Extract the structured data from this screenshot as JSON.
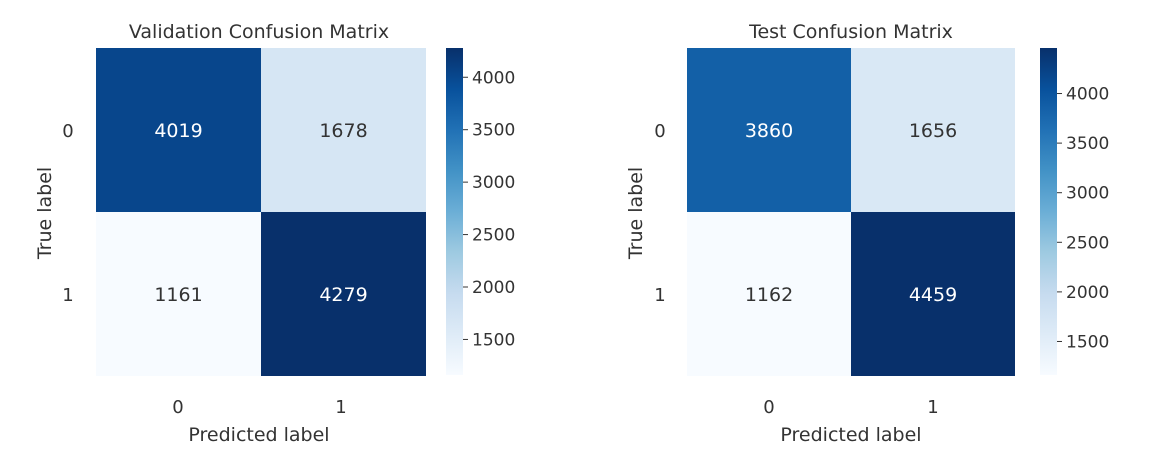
{
  "chart_data": [
    {
      "type": "heatmap",
      "title": "Validation Confusion Matrix",
      "xlabel": "Predicted label",
      "ylabel": "True label",
      "x_tick_labels": [
        "0",
        "1"
      ],
      "y_tick_labels": [
        "0",
        "1"
      ],
      "values": [
        [
          4019,
          1678
        ],
        [
          1161,
          4279
        ]
      ],
      "value_labels": [
        [
          "4019",
          "1678"
        ],
        [
          "1161",
          "4279"
        ]
      ],
      "colormap": "Blues",
      "color_range": [
        1161,
        4279
      ],
      "colorbar_ticks": [
        1500,
        2000,
        2500,
        3000,
        3500,
        4000
      ],
      "colorbar_tick_labels": [
        "1500",
        "2000",
        "2500",
        "3000",
        "3500",
        "4000"
      ],
      "grid": false
    },
    {
      "type": "heatmap",
      "title": "Test Confusion Matrix",
      "xlabel": "Predicted label",
      "ylabel": "True label",
      "x_tick_labels": [
        "0",
        "1"
      ],
      "y_tick_labels": [
        "0",
        "1"
      ],
      "values": [
        [
          3860,
          1656
        ],
        [
          1162,
          4459
        ]
      ],
      "value_labels": [
        [
          "3860",
          "1656"
        ],
        [
          "1162",
          "4459"
        ]
      ],
      "colormap": "Blues",
      "color_range": [
        1162,
        4459
      ],
      "colorbar_ticks": [
        1500,
        2000,
        2500,
        3000,
        3500,
        4000
      ],
      "colorbar_tick_labels": [
        "1500",
        "2000",
        "2500",
        "3000",
        "3500",
        "4000"
      ],
      "grid": false
    }
  ]
}
